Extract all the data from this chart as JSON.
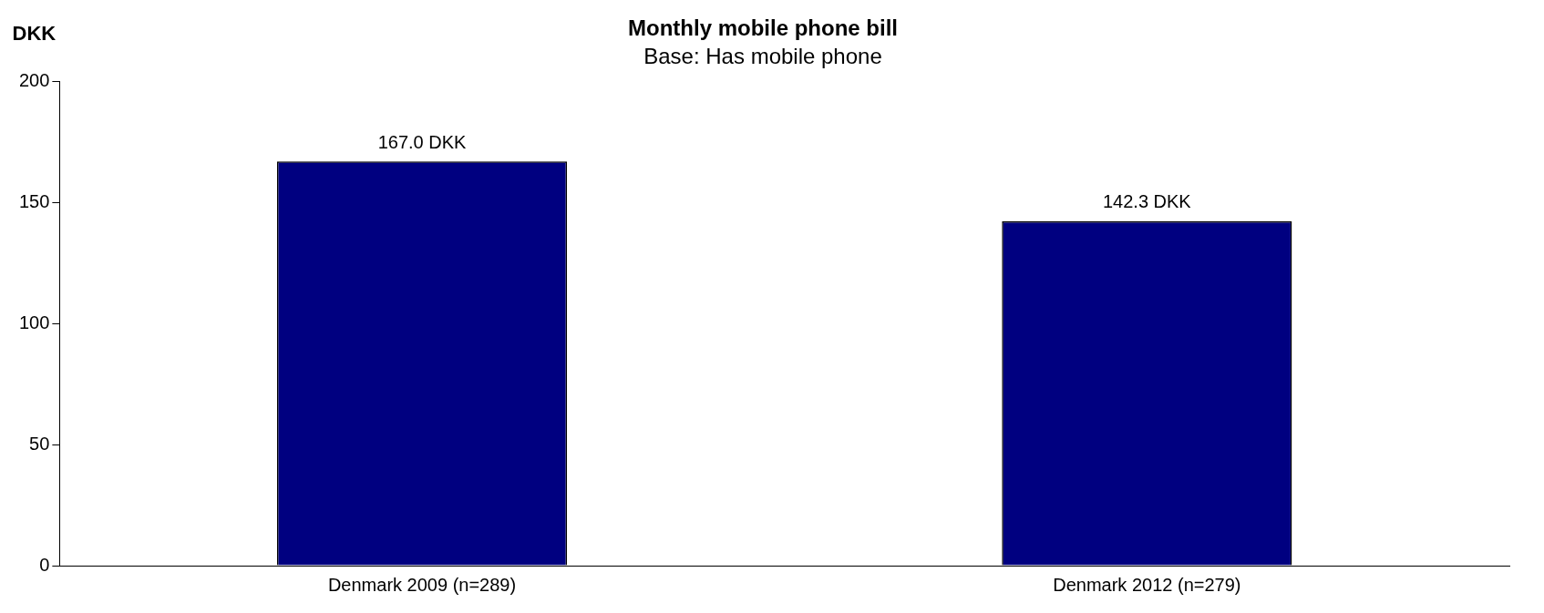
{
  "chart_data": {
    "type": "bar",
    "title": "Monthly mobile phone bill",
    "subtitle": "Base: Has mobile phone",
    "ylabel": "DKK",
    "categories": [
      "Denmark 2009 (n=289)",
      "Denmark 2012 (n=279)"
    ],
    "values": [
      167.0,
      142.3
    ],
    "color": "#000080",
    "value_labels": [
      "167.0 DKK",
      "142.3 DKK"
    ],
    "ylim": [
      0,
      200
    ],
    "yticks": [
      0,
      50,
      100,
      150,
      200
    ]
  }
}
